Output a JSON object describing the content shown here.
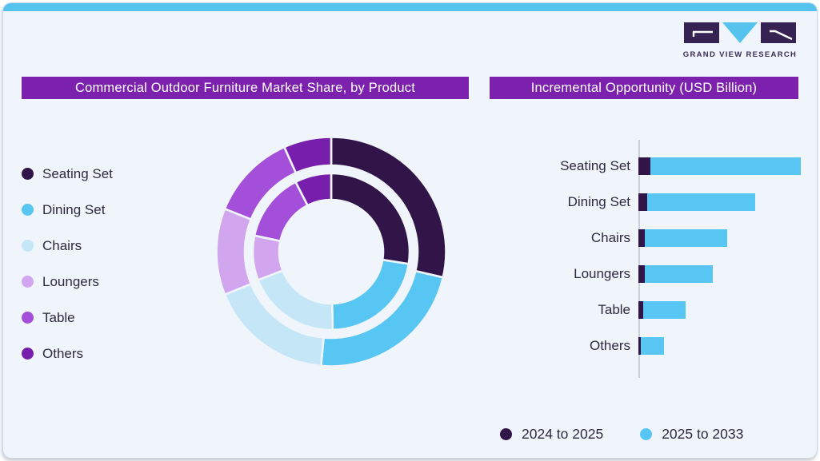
{
  "logo": {
    "text": "GRAND VIEW RESEARCH"
  },
  "palette": {
    "seating": "#311549",
    "dining": "#58C6F2",
    "chairs": "#C4E6F7",
    "loungers": "#D2A5EF",
    "table": "#A44FD9",
    "others": "#771FAC",
    "header_bg": "#7B21AD",
    "top_strip": "#56C3EE",
    "card_bg": "#EFF5FA",
    "text": "#2E2840",
    "axis": "#C9CED8",
    "logo_dark": "#372254",
    "logo_cyan": "#56C3EE"
  },
  "chart_data": [
    {
      "type": "pie",
      "variant": "double-ring-donut",
      "title": "Commercial Outdoor Furniture Market Share, by Product",
      "categories": [
        "Seating Set",
        "Dining Set",
        "Chairs",
        "Loungers",
        "Table",
        "Others"
      ],
      "colors": [
        "#311549",
        "#58C6F2",
        "#C4E6F7",
        "#D2A5EF",
        "#A44FD9",
        "#771FAC"
      ],
      "series": [
        {
          "name": "outer-ring",
          "values": [
            28.6,
            22.8,
            17.5,
            12.2,
            12.2,
            6.7
          ]
        },
        {
          "name": "inner-ring",
          "values": [
            27.5,
            22.2,
            19.4,
            9.2,
            14.2,
            7.5
          ]
        }
      ],
      "units": "percent (estimated from arc angles, no labels shown)",
      "start_angle_deg": 0,
      "legend_position": "left",
      "geometry": {
        "outer_ring": [
          108,
          143.5
        ],
        "inner_ring": [
          65,
          98
        ]
      }
    },
    {
      "type": "bar",
      "orientation": "horizontal",
      "stacked": true,
      "title": "Incremental Opportunity (USD Billion)",
      "categories": [
        "Seating Set",
        "Dining Set",
        "Chairs",
        "Loungers",
        "Table",
        "Others"
      ],
      "series": [
        {
          "name": "2024 to 2025",
          "color": "#311549",
          "values": [
            15,
            11,
            8,
            8,
            6,
            3
          ]
        },
        {
          "name": "2025 to 2033",
          "color": "#58C6F2",
          "values": [
            188,
            135,
            103,
            85,
            53,
            29
          ]
        }
      ],
      "units": "relative length (no numeric axis labels shown)",
      "grid": false,
      "legend_position": "bottom"
    }
  ]
}
